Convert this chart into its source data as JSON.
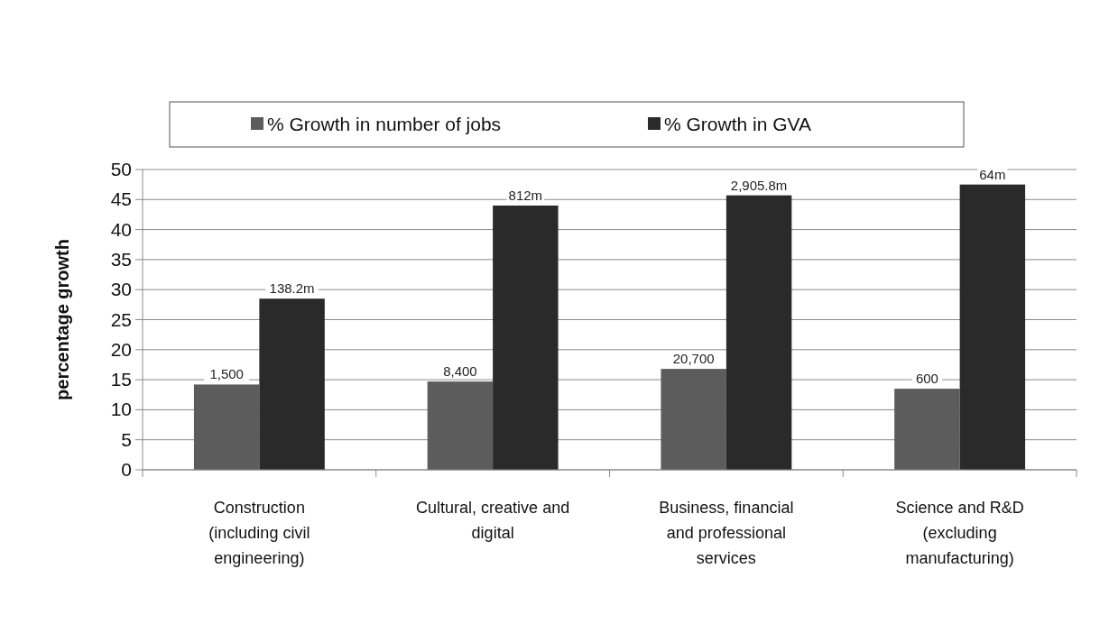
{
  "chart_data": {
    "type": "bar",
    "ylabel": "percentage growth",
    "categories": [
      "Construction (including civil engineering)",
      "Cultural, creative and digital",
      "Business, financial and professional services",
      "Science and R&D (excluding manufacturing)"
    ],
    "series": [
      {
        "name": "% Growth in number of jobs",
        "color": "#5c5c5c",
        "values": [
          14.2,
          14.7,
          16.8,
          13.5
        ]
      },
      {
        "name": "% Growth in GVA",
        "color": "#2a2a2a",
        "values": [
          28.5,
          44.0,
          45.7,
          47.5
        ]
      }
    ],
    "annotations": [
      {
        "text": "1,500",
        "x": "Construction (including civil engineering)",
        "y": 14.2
      },
      {
        "text": "8,400",
        "x": "Cultural, creative and digital",
        "y": 14.7
      },
      {
        "text": "20,700",
        "x": "Business, financial and professional services",
        "y": 16.8
      },
      {
        "text": "600",
        "x": "Science and R&D (excluding manufacturing)",
        "y": 13.5
      },
      {
        "text": "138.2m",
        "x": "Construction (including civil engineering)",
        "y": 28.5
      },
      {
        "text": "812m",
        "x": "Cultural, creative and digital",
        "y": 44.0
      },
      {
        "text": "2,905.8m",
        "x": "Business, financial and professional services",
        "y": 45.7
      },
      {
        "text": "64m",
        "x": "Science and R&D (excluding manufacturing)",
        "y": 47.5
      }
    ],
    "ylim": [
      0,
      50
    ],
    "yticks": [
      0,
      5,
      10,
      15,
      20,
      25,
      30,
      35,
      40,
      45,
      50
    ],
    "grid": "y",
    "legend": "top"
  }
}
